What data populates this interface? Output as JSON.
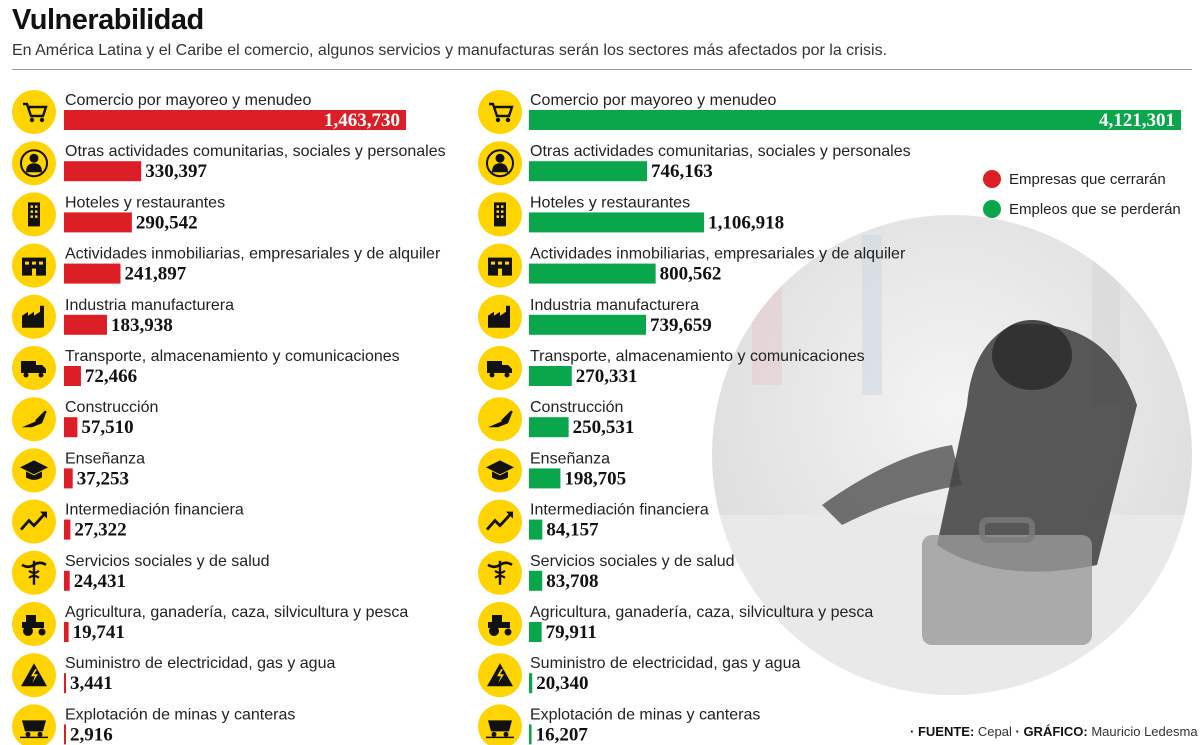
{
  "header": {
    "title": "Vulnerabilidad",
    "subtitle": "En América Latina y el Caribe el comercio, algunos servicios y manufacturas serán los sectores más afectados por la crisis."
  },
  "legend": {
    "items": [
      {
        "label": "Empresas que cerrarán",
        "color": "#dc1f26"
      },
      {
        "label": "Empleos que se perderán",
        "color": "#0aa64b"
      }
    ]
  },
  "source": {
    "fuente_label": "· FUENTE:",
    "fuente_value": "Cepal",
    "grafico_label": "· GRÁFICO:",
    "grafico_value": "Mauricio Ledesma"
  },
  "icons": [
    "cart-icon",
    "person-icon",
    "building-icon",
    "office-icon",
    "factory-icon",
    "truck-icon",
    "trowel-icon",
    "graduation-cap-icon",
    "trend-up-icon",
    "caduceus-icon",
    "tractor-icon",
    "lightning-icon",
    "mine-cart-icon"
  ],
  "chart_data": [
    {
      "type": "bar",
      "orientation": "horizontal",
      "categories": [
        "Comercio por mayoreo y menudeo",
        "Otras actividades comunitarias, sociales y personales",
        "Hoteles y restaurantes",
        "Actividades inmobiliarias, empresariales y de alquiler",
        "Industria manufacturera",
        "Transporte, almacenamiento y comunicaciones",
        "Construcción",
        "Enseñanza",
        "Intermediación financiera",
        "Servicios sociales y de salud",
        "Agricultura, ganadería, caza, silvicultura y pesca",
        "Suministro de electricidad, gas y agua",
        "Explotación de minas y canteras"
      ],
      "values": [
        1463730,
        330397,
        290542,
        241897,
        183938,
        72466,
        57510,
        37253,
        27322,
        24431,
        19741,
        3441,
        2916
      ],
      "labels": [
        "1,463,730",
        "330,397",
        "290,542",
        "241,897",
        "183,938",
        "72,466",
        "57,510",
        "37,253",
        "27,322",
        "24,431",
        "19,741",
        "3,441",
        "2,916"
      ],
      "series_name": "Empresas que cerrarán",
      "color": "#dc1f26"
    },
    {
      "type": "bar",
      "orientation": "horizontal",
      "categories": [
        "Comercio por mayoreo y menudeo",
        "Otras actividades comunitarias, sociales y personales",
        "Hoteles y restaurantes",
        "Actividades inmobiliarias, empresariales y de alquiler",
        "Industria manufacturera",
        "Transporte, almacenamiento y comunicaciones",
        "Construcción",
        "Enseñanza",
        "Intermediación financiera",
        "Servicios sociales y de salud",
        "Agricultura, ganadería, caza, silvicultura y pesca",
        "Suministro de electricidad, gas y agua",
        "Explotación de minas y canteras"
      ],
      "values": [
        4121301,
        746163,
        1106918,
        800562,
        739659,
        270331,
        250531,
        198705,
        84157,
        83708,
        79911,
        20340,
        16207
      ],
      "labels": [
        "4,121,301",
        "746,163",
        "1,106,918",
        "800,562",
        "739,659",
        "270,331",
        "250,531",
        "198,705",
        "84,157",
        "83,708",
        "79,911",
        "20,340",
        "16,207"
      ],
      "series_name": "Empleos que se perderán",
      "color": "#0aa64b"
    }
  ]
}
